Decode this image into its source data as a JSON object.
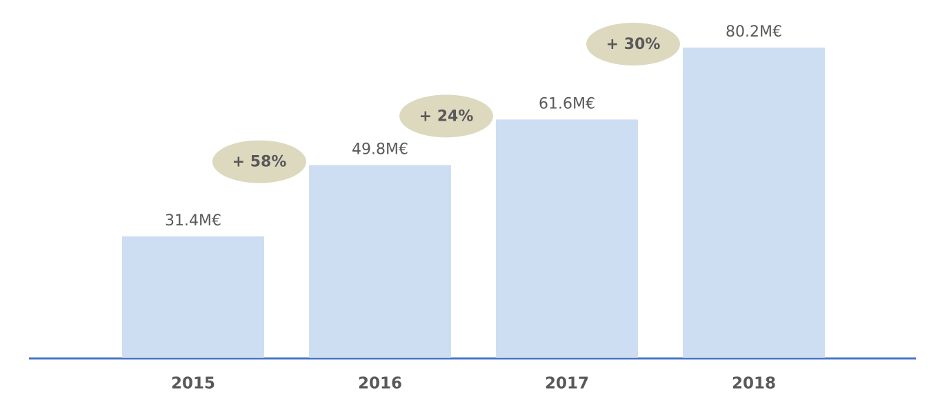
{
  "chart_data": {
    "type": "bar",
    "categories": [
      "2015",
      "2016",
      "2017",
      "2018"
    ],
    "values": [
      31.4,
      49.8,
      61.6,
      80.2
    ],
    "value_labels": [
      "31.4M€",
      "49.8M€",
      "61.6M€",
      "80.2M€"
    ],
    "color": "#cddef3",
    "annotations": [
      "+ 58%",
      "+ 24%",
      "+ 30%"
    ]
  }
}
